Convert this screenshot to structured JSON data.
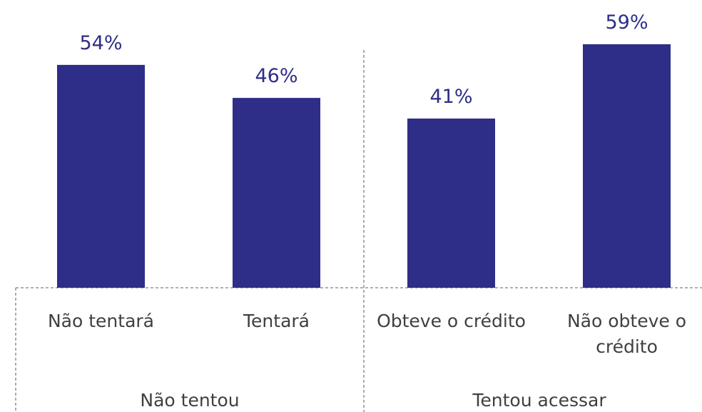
{
  "chart_data": {
    "type": "bar",
    "categories": [
      "Não tentará",
      "Tentará",
      "Obteve o crédito",
      "Não obteve o crédito"
    ],
    "values": [
      54,
      46,
      41,
      59
    ],
    "value_labels": [
      "54%",
      "46%",
      "41%",
      "59%"
    ],
    "groups": [
      "Não tentou",
      "Tentou acessar"
    ],
    "color": "#2e2d87"
  }
}
